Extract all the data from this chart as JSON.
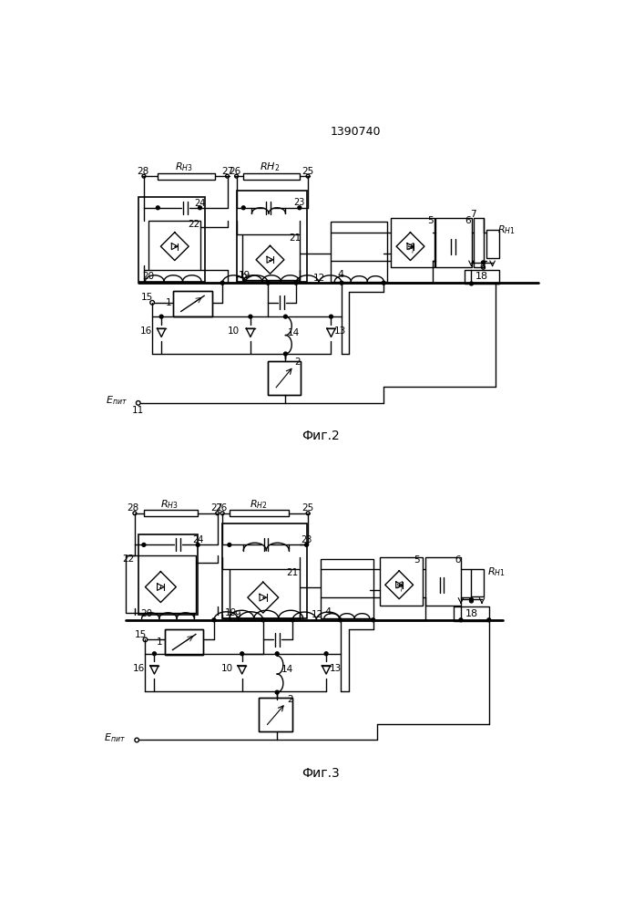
{
  "title": "1390740",
  "fig2_label": "Фиг.2",
  "fig3_label": "Фиг.3",
  "background_color": "#ffffff",
  "line_color": "#000000"
}
